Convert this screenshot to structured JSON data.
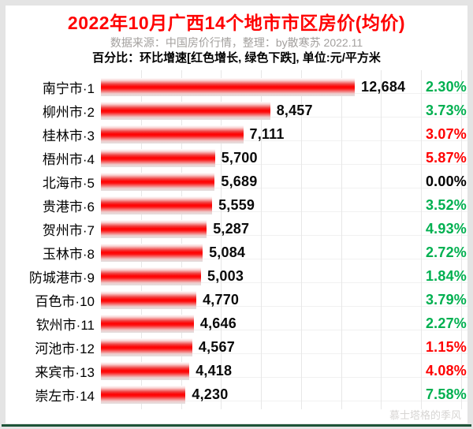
{
  "header": {
    "title": "2022年10月广西14个地市市区房价(均价)",
    "source": "数据来源：中国房价行情，整理：by散寒苏 2022.11",
    "note": "百分比：环比增速[红色增长, 绿色下跌], 单位:元/平方米"
  },
  "watermark": "慕士塔格的季风",
  "colors": {
    "title_red": "#ff0000",
    "green": "#00b050",
    "red": "#ff0000",
    "black": "#000000",
    "bottom_line": "#1d5438"
  },
  "chart_data": {
    "type": "bar",
    "orientation": "horizontal",
    "title": "2022年10月广西14个地市市区房价(均价)",
    "unit": "元/平方米",
    "xlim": [
      0,
      12684
    ],
    "gridline_interval": 2000,
    "grid": true,
    "categories": [
      "南宁市·1",
      "柳州市·2",
      "桂林市·3",
      "梧州市·4",
      "北海市·5",
      "贵港市·6",
      "贺州市·7",
      "玉林市·8",
      "防城港市·9",
      "百色市·10",
      "钦州市·11",
      "河池市·12",
      "来宾市·13",
      "崇左市·14"
    ],
    "values": [
      12684,
      8457,
      7111,
      5700,
      5689,
      5559,
      5287,
      5084,
      5003,
      4770,
      4646,
      4567,
      4418,
      4230
    ],
    "value_labels": [
      "12,684",
      "8,457",
      "7,111",
      "5,700",
      "5,689",
      "5,559",
      "5,287",
      "5,084",
      "5,003",
      "4,770",
      "4,646",
      "4,567",
      "4,418",
      "4,230"
    ],
    "pct_labels": [
      "2.30%",
      "3.73%",
      "3.07%",
      "5.87%",
      "0.00%",
      "3.52%",
      "4.93%",
      "2.72%",
      "1.84%",
      "3.79%",
      "2.27%",
      "1.15%",
      "4.08%",
      "7.58%"
    ],
    "pct_colors": [
      "green",
      "green",
      "red",
      "red",
      "black",
      "green",
      "green",
      "green",
      "green",
      "green",
      "green",
      "red",
      "red",
      "green"
    ]
  }
}
